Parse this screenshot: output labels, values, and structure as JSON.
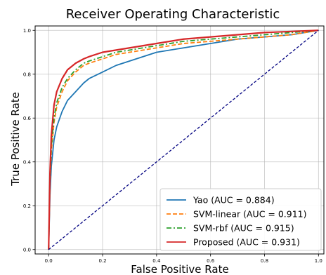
{
  "chart_data": {
    "type": "line",
    "title": "Receiver Operating Characteristic",
    "xlabel": "False Positive Rate",
    "ylabel": "True Positive Rate",
    "xlim": [
      -0.05,
      1.02
    ],
    "ylim": [
      -0.02,
      1.02
    ],
    "xticks": [
      "0.0",
      "0.2",
      "0.4",
      "0.6",
      "0.8",
      "1.0"
    ],
    "yticks": [
      "0.0",
      "0.2",
      "0.4",
      "0.6",
      "0.8",
      "1.0"
    ],
    "grid": true,
    "legend_position": "lower-right",
    "series": [
      {
        "name": "Yao (AUC = 0.884)",
        "color": "#1f77b4",
        "style": "solid",
        "x": [
          0,
          0.005,
          0.01,
          0.02,
          0.03,
          0.05,
          0.07,
          0.1,
          0.13,
          0.15,
          0.2,
          0.25,
          0.3,
          0.35,
          0.4,
          0.5,
          0.6,
          0.7,
          0.8,
          0.9,
          1.0
        ],
        "y": [
          0,
          0.25,
          0.38,
          0.5,
          0.56,
          0.63,
          0.68,
          0.72,
          0.76,
          0.78,
          0.81,
          0.84,
          0.86,
          0.88,
          0.9,
          0.92,
          0.94,
          0.96,
          0.97,
          0.98,
          1.0
        ]
      },
      {
        "name": "SVM-linear (AUC = 0.911)",
        "color": "#ff7f0e",
        "style": "dashed",
        "x": [
          0,
          0.005,
          0.01,
          0.02,
          0.03,
          0.05,
          0.07,
          0.1,
          0.13,
          0.15,
          0.2,
          0.25,
          0.3,
          0.35,
          0.4,
          0.5,
          0.6,
          0.7,
          0.8,
          0.9,
          1.0
        ],
        "y": [
          0,
          0.3,
          0.45,
          0.58,
          0.65,
          0.72,
          0.77,
          0.81,
          0.84,
          0.85,
          0.87,
          0.89,
          0.9,
          0.91,
          0.92,
          0.94,
          0.95,
          0.96,
          0.97,
          0.98,
          1.0
        ]
      },
      {
        "name": "SVM-rbf (AUC = 0.915)",
        "color": "#2ca02c",
        "style": "dashdot",
        "x": [
          0,
          0.005,
          0.01,
          0.02,
          0.03,
          0.05,
          0.07,
          0.1,
          0.13,
          0.15,
          0.2,
          0.25,
          0.3,
          0.35,
          0.4,
          0.5,
          0.6,
          0.7,
          0.8,
          0.9,
          1.0
        ],
        "y": [
          0,
          0.32,
          0.47,
          0.6,
          0.67,
          0.74,
          0.78,
          0.82,
          0.85,
          0.86,
          0.88,
          0.9,
          0.91,
          0.92,
          0.93,
          0.95,
          0.96,
          0.97,
          0.98,
          0.99,
          1.0
        ]
      },
      {
        "name": "Proposed (AUC = 0.931)",
        "color": "#d62728",
        "style": "solid",
        "x": [
          0,
          0.005,
          0.01,
          0.02,
          0.03,
          0.05,
          0.07,
          0.1,
          0.13,
          0.15,
          0.2,
          0.25,
          0.3,
          0.35,
          0.4,
          0.5,
          0.6,
          0.7,
          0.8,
          0.9,
          1.0
        ],
        "y": [
          0,
          0.35,
          0.52,
          0.66,
          0.72,
          0.78,
          0.82,
          0.85,
          0.87,
          0.88,
          0.9,
          0.91,
          0.92,
          0.93,
          0.94,
          0.96,
          0.97,
          0.98,
          0.99,
          0.995,
          1.0
        ]
      },
      {
        "name": "",
        "color": "#000080",
        "style": "dashed",
        "x": [
          0,
          1
        ],
        "y": [
          0,
          1
        ]
      }
    ]
  }
}
